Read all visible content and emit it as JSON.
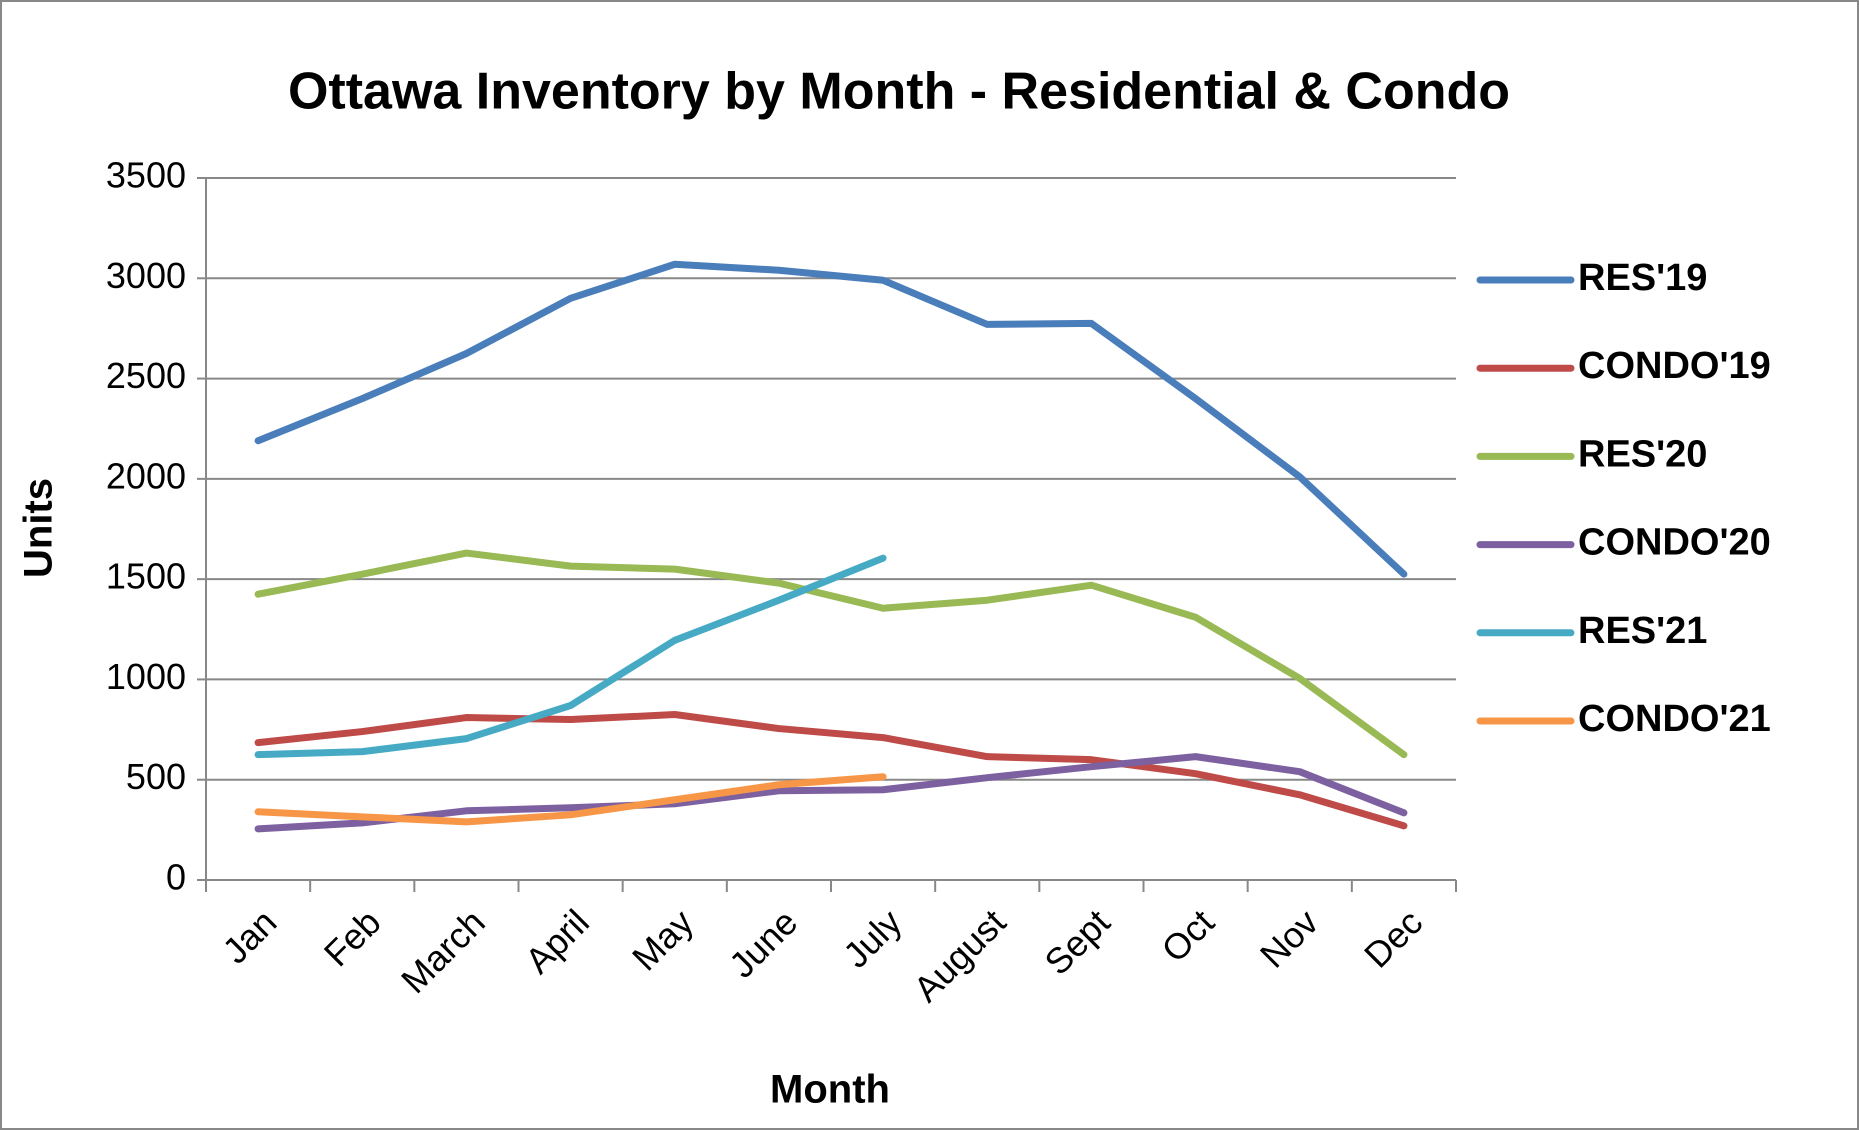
{
  "chart_data": {
    "type": "line",
    "title": "Ottawa Inventory by Month - Residential & Condo",
    "x_label": "Month",
    "y_label": "Units",
    "categories": [
      "Jan",
      "Feb",
      "March",
      "April",
      "May",
      "June",
      "July",
      "August",
      "Sept",
      "Oct",
      "Nov",
      "Dec"
    ],
    "series": [
      {
        "name": "RES'19",
        "color": "#4a7ebb",
        "values": [
          2190,
          2400,
          2625,
          2900,
          3070,
          3040,
          2990,
          2770,
          2775,
          2400,
          2010,
          1525
        ]
      },
      {
        "name": "CONDO'19",
        "color": "#be4b48",
        "values": [
          685,
          740,
          810,
          800,
          825,
          755,
          710,
          615,
          600,
          530,
          425,
          270
        ]
      },
      {
        "name": "RES'20",
        "color": "#98b954",
        "values": [
          1425,
          1525,
          1630,
          1565,
          1550,
          1480,
          1355,
          1395,
          1470,
          1310,
          1005,
          625
        ]
      },
      {
        "name": "CONDO'20",
        "color": "#7d60a0",
        "values": [
          255,
          285,
          345,
          360,
          380,
          445,
          450,
          510,
          565,
          615,
          540,
          335
        ]
      },
      {
        "name": "RES'21",
        "color": "#46aac5",
        "values": [
          625,
          640,
          705,
          870,
          1195,
          1395,
          1605,
          null,
          null,
          null,
          null,
          null
        ]
      },
      {
        "name": "CONDO'21",
        "color": "#f79646",
        "values": [
          340,
          315,
          290,
          325,
          400,
          475,
          515,
          null,
          null,
          null,
          null,
          null
        ]
      }
    ],
    "ylim": [
      0,
      3500
    ],
    "yticks": [
      0,
      500,
      1000,
      1500,
      2000,
      2500,
      3000,
      3500
    ],
    "grid": true,
    "legend": "right"
  }
}
